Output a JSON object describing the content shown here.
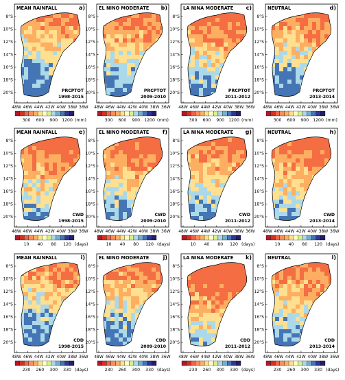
{
  "figure": {
    "lat_ticks": [
      "8°S",
      "10°S",
      "12°S",
      "14°S",
      "16°S",
      "18°S",
      "20°S"
    ],
    "lon_ticks": [
      "48W",
      "46W",
      "44W",
      "42W",
      "40W",
      "38W",
      "36W"
    ],
    "column_titles": [
      "MEAN RAINFALL",
      "EL NINO MODERATE",
      "LA NINA MODERATE",
      "NEUTRAL"
    ],
    "rows": [
      {
        "index": "PRCPTOT",
        "colorbar": {
          "ticks": [
            "300",
            "600",
            "900",
            "1200"
          ],
          "unit": "(mm)"
        },
        "panels": [
          {
            "letter": "a)",
            "title": "MEAN RAINFALL",
            "period": "1998-2015"
          },
          {
            "letter": "b)",
            "title": "EL NINO MODERATE",
            "period": "2009-2010"
          },
          {
            "letter": "c)",
            "title": "LA NINA MODERATE",
            "period": "2011-2012"
          },
          {
            "letter": "d)",
            "title": "NEUTRAL",
            "period": "2013-2014"
          }
        ]
      },
      {
        "index": "CWD",
        "colorbar": {
          "ticks": [
            "10",
            "40",
            "80",
            "120"
          ],
          "unit": "(days)"
        },
        "panels": [
          {
            "letter": "e)",
            "title": "MEAN RAINFALL",
            "period": "1998-2015"
          },
          {
            "letter": "f)",
            "title": "EL NINO MODERATE",
            "period": "2009-2010"
          },
          {
            "letter": "g)",
            "title": "LA NINA MODERATE",
            "period": "2011-2012"
          },
          {
            "letter": "h)",
            "title": "NEUTRAL",
            "period": "2013-2014"
          }
        ]
      },
      {
        "index": "CDD",
        "colorbar": {
          "ticks": [
            "230",
            "260",
            "300",
            "330"
          ],
          "unit": "(days)"
        },
        "panels": [
          {
            "letter": "i)",
            "title": "MEAN RAINFALL",
            "period": "1998-2015"
          },
          {
            "letter": "j)",
            "title": "EL NINO MODERATE",
            "period": "2009-2010"
          },
          {
            "letter": "k)",
            "title": "LA NINA MODERATE",
            "period": "2011-2012"
          },
          {
            "letter": "l)",
            "title": "NEUTRAL",
            "period": "2013-2014"
          }
        ]
      }
    ],
    "colorbar_colors": [
      "#b2182b",
      "#d7301f",
      "#ef6548",
      "#fc8d59",
      "#fdae61",
      "#fee08b",
      "#ffffbf",
      "#d9ef8b",
      "#abd9e9",
      "#74add1",
      "#4575b4",
      "#313695",
      "#241f6b"
    ],
    "map_colors": {
      "dry": "#f46d43",
      "warm": "#fdae61",
      "mid": "#fee090",
      "cool": "#abd9e9",
      "wet": "#4575b4"
    }
  },
  "chart_data": {
    "type": "heatmap",
    "layout": "3 rows x 4 columns of gridded maps",
    "axes": {
      "x": {
        "label": "",
        "ticks": [
          "48W",
          "46W",
          "44W",
          "42W",
          "40W",
          "38W",
          "36W"
        ],
        "range": [
          -48,
          -36
        ]
      },
      "y": {
        "label": "",
        "ticks": [
          "8°S",
          "10°S",
          "12°S",
          "14°S",
          "16°S",
          "18°S",
          "20°S"
        ],
        "range": [
          -21,
          -7
        ]
      }
    },
    "grid": false,
    "panels": [
      {
        "panel": "a",
        "title": "MEAN RAINFALL",
        "index": "PRCPTOT",
        "period": "1998-2015",
        "colorbar_ticks": [
          300,
          600,
          900,
          1200
        ],
        "unit": "mm"
      },
      {
        "panel": "b",
        "title": "EL NINO MODERATE",
        "index": "PRCPTOT",
        "period": "2009-2010",
        "colorbar_ticks": [
          300,
          600,
          900,
          1200
        ],
        "unit": "mm"
      },
      {
        "panel": "c",
        "title": "LA NINA MODERATE",
        "index": "PRCPTOT",
        "period": "2011-2012",
        "colorbar_ticks": [
          300,
          600,
          900,
          1200
        ],
        "unit": "mm"
      },
      {
        "panel": "d",
        "title": "NEUTRAL",
        "index": "PRCPTOT",
        "period": "2013-2014",
        "colorbar_ticks": [
          300,
          600,
          900,
          1200
        ],
        "unit": "mm"
      },
      {
        "panel": "e",
        "title": "MEAN RAINFALL",
        "index": "CWD",
        "period": "1998-2015",
        "colorbar_ticks": [
          10,
          40,
          80,
          120
        ],
        "unit": "days"
      },
      {
        "panel": "f",
        "title": "EL NINO MODERATE",
        "index": "CWD",
        "period": "2009-2010",
        "colorbar_ticks": [
          10,
          40,
          80,
          120
        ],
        "unit": "days"
      },
      {
        "panel": "g",
        "title": "LA NINA MODERATE",
        "index": "CWD",
        "period": "2011-2012",
        "colorbar_ticks": [
          10,
          40,
          80,
          120
        ],
        "unit": "days"
      },
      {
        "panel": "h",
        "title": "NEUTRAL",
        "index": "CWD",
        "period": "2013-2014",
        "colorbar_ticks": [
          10,
          40,
          80,
          120
        ],
        "unit": "days"
      },
      {
        "panel": "i",
        "title": "MEAN RAINFALL",
        "index": "CDD",
        "period": "1998-2015",
        "colorbar_ticks": [
          230,
          260,
          300,
          330
        ],
        "unit": "days"
      },
      {
        "panel": "j",
        "title": "EL NINO MODERATE",
        "index": "CDD",
        "period": "2009-2010",
        "colorbar_ticks": [
          230,
          260,
          300,
          330
        ],
        "unit": "days"
      },
      {
        "panel": "k",
        "title": "LA NINA MODERATE",
        "index": "CDD",
        "period": "2011-2012",
        "colorbar_ticks": [
          230,
          260,
          300,
          330
        ],
        "unit": "days"
      },
      {
        "panel": "l",
        "title": "NEUTRAL",
        "index": "CDD",
        "period": "2013-2014",
        "colorbar_ticks": [
          230,
          260,
          300,
          330
        ],
        "unit": "days"
      }
    ]
  }
}
